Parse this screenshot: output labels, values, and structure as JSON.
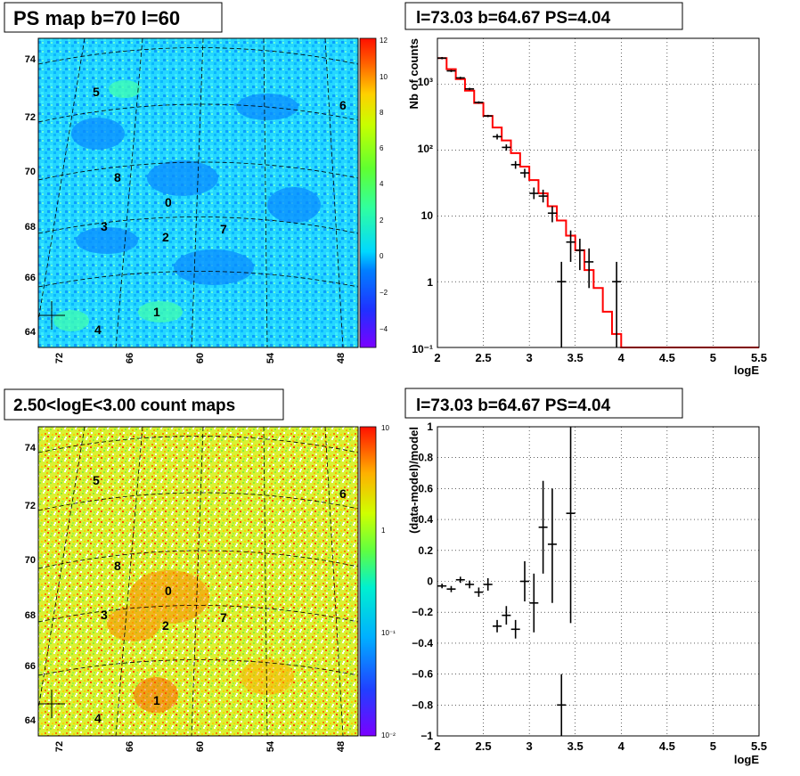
{
  "panels": {
    "tl_title": "PS map b=70 l=60",
    "tr_title": "l=73.03 b=64.67 PS=4.04",
    "bl_title": "2.50<logE<3.00 count maps",
    "br_title": "l=73.03 b=64.67 PS=4.04"
  },
  "maps": {
    "x_ticks": [
      "72",
      "66",
      "60",
      "54",
      "48"
    ],
    "y_ticks": [
      "74",
      "72",
      "70",
      "68",
      "66",
      "64"
    ],
    "sources": [
      "0",
      "1",
      "2",
      "3",
      "4",
      "5",
      "6",
      "7",
      "8"
    ],
    "ps_colorbar_ticks": [
      "12",
      "10",
      "8",
      "6",
      "4",
      "2",
      "0",
      "−2",
      "−4"
    ],
    "count_colorbar_ticks": [
      "10",
      "1",
      "10⁻¹",
      "10⁻²"
    ],
    "ps_colors": [
      "#6a28ff",
      "#2d3cff",
      "#0a64ff",
      "#0ab4ff",
      "#00e0ff",
      "#4fff90",
      "#8aff32",
      "#c2ff00",
      "#ffd000",
      "#ff8a00",
      "#ff4a00",
      "#ff1a00"
    ]
  },
  "chart_data": [
    {
      "type": "line",
      "title": "l=73.03 b=64.67 PS=4.04",
      "xlabel": "logE",
      "ylabel": "Nb of counts",
      "xlim": [
        2,
        5.5
      ],
      "ylim": [
        0.1,
        5000
      ],
      "log_y": true,
      "grid": true,
      "x_ticks": [
        "2",
        "2.5",
        "3",
        "3.5",
        "4",
        "4.5",
        "5",
        "5.5"
      ],
      "y_ticks": [
        "10⁻¹",
        "1",
        "10",
        "10²",
        "10³"
      ],
      "model_color": "#ff0000",
      "model": {
        "bins": [
          2.0,
          2.1,
          2.2,
          2.3,
          2.4,
          2.5,
          2.6,
          2.7,
          2.8,
          2.9,
          3.0,
          3.1,
          3.2,
          3.3,
          3.4,
          3.5,
          3.6,
          3.7,
          3.8,
          3.9,
          4.0,
          5.5
        ],
        "values": [
          2500,
          1700,
          1200,
          800,
          520,
          330,
          220,
          140,
          90,
          56,
          35,
          22,
          14,
          8.5,
          5,
          3,
          1.5,
          0.8,
          0.35,
          0.16,
          0.1
        ]
      },
      "data": [
        {
          "x": 2.05,
          "y": 2500
        },
        {
          "x": 2.15,
          "y": 1600
        },
        {
          "x": 2.25,
          "y": 1250
        },
        {
          "x": 2.35,
          "y": 850
        },
        {
          "x": 2.45,
          "y": 530
        },
        {
          "x": 2.55,
          "y": 330
        },
        {
          "x": 2.65,
          "y": 160,
          "lo": 145,
          "hi": 175
        },
        {
          "x": 2.75,
          "y": 110,
          "lo": 98,
          "hi": 122
        },
        {
          "x": 2.85,
          "y": 60,
          "lo": 52,
          "hi": 68
        },
        {
          "x": 2.95,
          "y": 45,
          "lo": 38,
          "hi": 52
        },
        {
          "x": 3.05,
          "y": 22,
          "lo": 18,
          "hi": 27
        },
        {
          "x": 3.15,
          "y": 20,
          "lo": 16,
          "hi": 25
        },
        {
          "x": 3.25,
          "y": 11,
          "lo": 8,
          "hi": 14
        },
        {
          "x": 3.35,
          "y": 1,
          "lo": 0.1,
          "hi": 2
        },
        {
          "x": 3.45,
          "y": 4,
          "lo": 2,
          "hi": 6
        },
        {
          "x": 3.55,
          "y": 3,
          "lo": 1.5,
          "hi": 4.5
        },
        {
          "x": 3.65,
          "y": 2,
          "lo": 0.8,
          "hi": 3.2
        },
        {
          "x": 3.95,
          "y": 1,
          "lo": 0.1,
          "hi": 2
        }
      ]
    },
    {
      "type": "scatter",
      "title": "l=73.03 b=64.67 PS=4.04",
      "xlabel": "logE",
      "ylabel": "(data-model)/model",
      "xlim": [
        2,
        5.5
      ],
      "ylim": [
        -1,
        1
      ],
      "grid": true,
      "x_ticks": [
        "2",
        "2.5",
        "3",
        "3.5",
        "4",
        "4.5",
        "5",
        "5.5"
      ],
      "y_ticks": [
        "−1",
        "−0.8",
        "−0.6",
        "−0.4",
        "−0.2",
        "0",
        "0.2",
        "0.4",
        "0.6",
        "0.8",
        "1"
      ],
      "data": [
        {
          "x": 2.05,
          "y": -0.03,
          "lo": -0.045,
          "hi": -0.015
        },
        {
          "x": 2.15,
          "y": -0.05,
          "lo": -0.07,
          "hi": -0.03
        },
        {
          "x": 2.25,
          "y": 0.01,
          "lo": -0.01,
          "hi": 0.03
        },
        {
          "x": 2.35,
          "y": -0.02,
          "lo": -0.045,
          "hi": 0.005
        },
        {
          "x": 2.45,
          "y": -0.07,
          "lo": -0.1,
          "hi": -0.04
        },
        {
          "x": 2.55,
          "y": -0.02,
          "lo": -0.06,
          "hi": 0.02
        },
        {
          "x": 2.65,
          "y": -0.29,
          "lo": -0.33,
          "hi": -0.25
        },
        {
          "x": 2.75,
          "y": -0.22,
          "lo": -0.28,
          "hi": -0.16
        },
        {
          "x": 2.85,
          "y": -0.31,
          "lo": -0.37,
          "hi": -0.25
        },
        {
          "x": 2.95,
          "y": 0.0,
          "lo": -0.13,
          "hi": 0.13
        },
        {
          "x": 3.05,
          "y": -0.14,
          "lo": -0.33,
          "hi": 0.05
        },
        {
          "x": 3.15,
          "y": 0.35,
          "lo": 0.05,
          "hi": 0.65
        },
        {
          "x": 3.25,
          "y": 0.24,
          "lo": -0.14,
          "hi": 0.6
        },
        {
          "x": 3.35,
          "y": -0.8,
          "lo": -1.0,
          "hi": -0.6
        },
        {
          "x": 3.45,
          "y": 0.44,
          "lo": -0.27,
          "hi": 1.0
        }
      ]
    }
  ]
}
